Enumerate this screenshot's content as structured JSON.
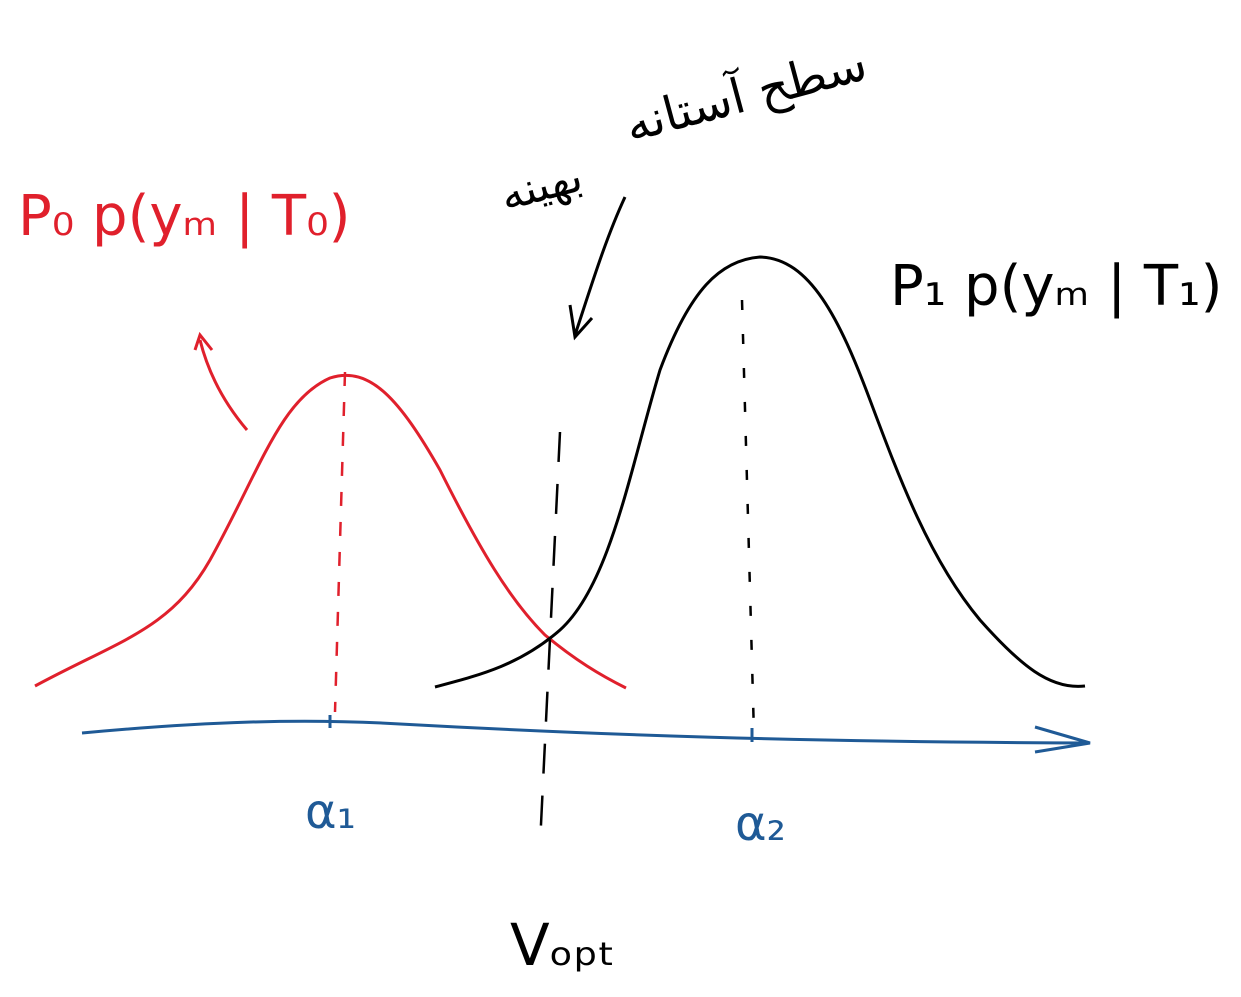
{
  "labels": {
    "left_curve": "P₀ p(yₘ | T₀)",
    "right_curve": "P₁ p(yₘ | T₁)",
    "alpha1": "α₁",
    "alpha2": "α₂",
    "threshold": "Vₒₚₜ",
    "annotation_top": "سطح آستانه",
    "annotation_bottom": "بهینه"
  }
}
